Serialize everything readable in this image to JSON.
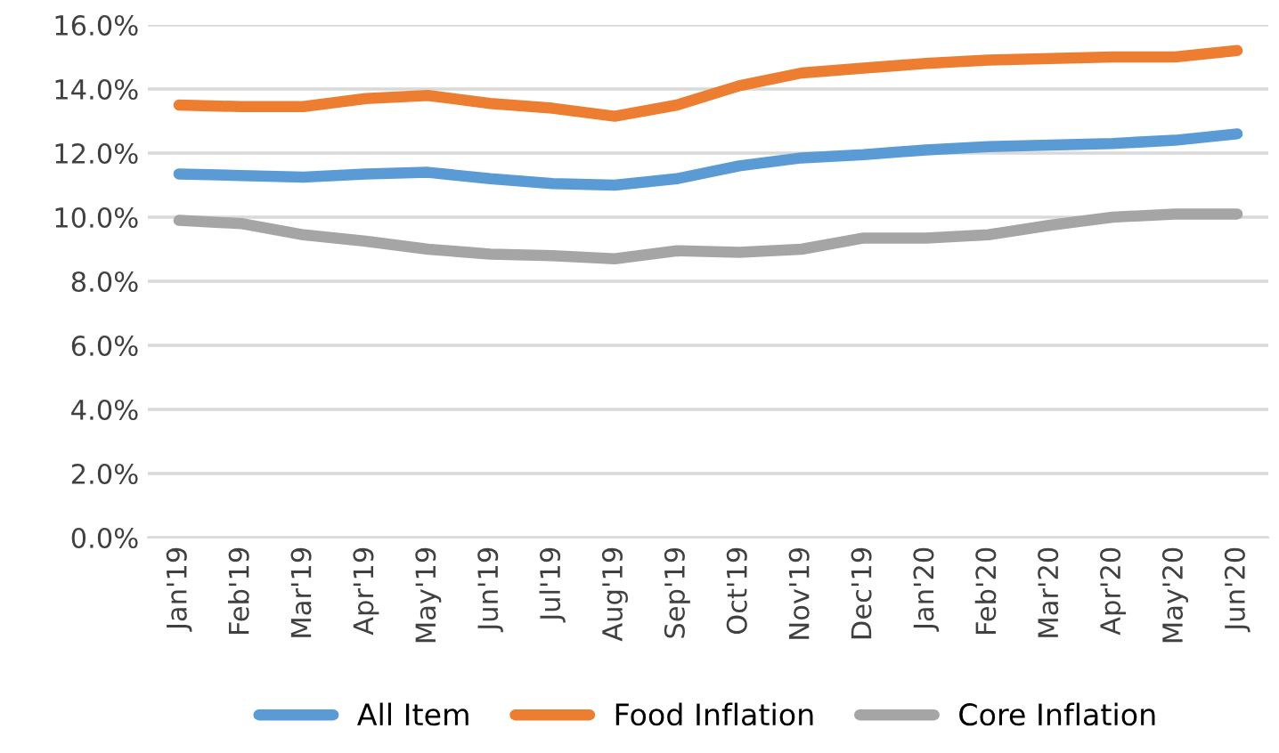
{
  "chart_data": {
    "type": "line",
    "categories": [
      "Jan'19",
      "Feb'19",
      "Mar'19",
      "Apr'19",
      "May'19",
      "Jun'19",
      "Jul'19",
      "Aug'19",
      "Sep'19",
      "Oct'19",
      "Nov'19",
      "Dec'19",
      "Jan'20",
      "Feb'20",
      "Mar'20",
      "Apr'20",
      "May'20",
      "Jun'20"
    ],
    "series": [
      {
        "name": "All Item",
        "color": "#5b9bd5",
        "values": [
          11.35,
          11.3,
          11.25,
          11.35,
          11.4,
          11.2,
          11.05,
          11.0,
          11.2,
          11.6,
          11.85,
          11.95,
          12.1,
          12.2,
          12.25,
          12.3,
          12.4,
          12.6
        ]
      },
      {
        "name": "Food Inflation",
        "color": "#ed7d31",
        "values": [
          13.5,
          13.45,
          13.45,
          13.7,
          13.8,
          13.55,
          13.4,
          13.15,
          13.5,
          14.1,
          14.5,
          14.65,
          14.8,
          14.9,
          14.95,
          15.0,
          15.0,
          15.2
        ]
      },
      {
        "name": "Core Inflation",
        "color": "#a5a5a5",
        "values": [
          9.9,
          9.8,
          9.45,
          9.25,
          9.0,
          8.85,
          8.8,
          8.7,
          8.95,
          8.9,
          9.0,
          9.35,
          9.35,
          9.45,
          9.75,
          10.0,
          10.1,
          10.1
        ]
      }
    ],
    "ylim": [
      0,
      16
    ],
    "yticks": [
      {
        "value": 0,
        "label": "0.0%"
      },
      {
        "value": 2,
        "label": "2.0%"
      },
      {
        "value": 4,
        "label": "4.0%"
      },
      {
        "value": 6,
        "label": "6.0%"
      },
      {
        "value": 8,
        "label": "8.0%"
      },
      {
        "value": 10,
        "label": "10.0%"
      },
      {
        "value": 12,
        "label": "12.0%"
      },
      {
        "value": 14,
        "label": "14.0%"
      },
      {
        "value": 16,
        "label": "16.0%"
      }
    ],
    "grid": "y",
    "legend": "bottom",
    "marker": "none",
    "line_style": "solid"
  }
}
